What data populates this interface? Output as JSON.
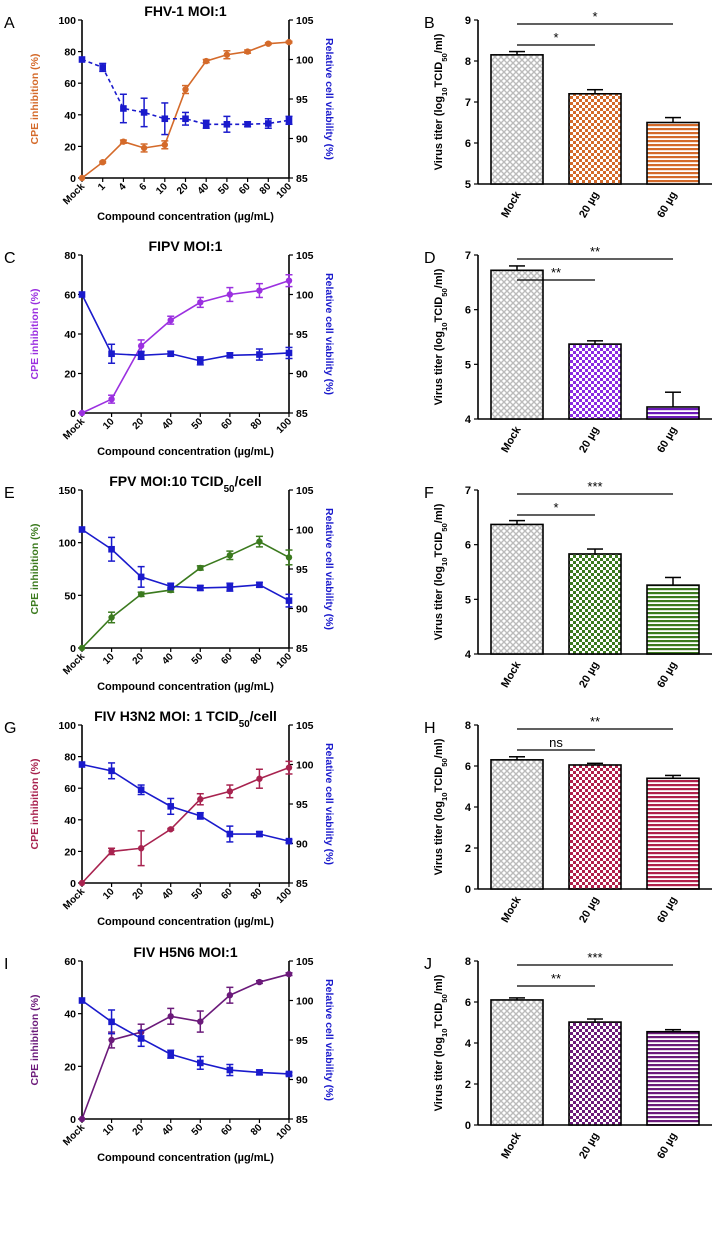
{
  "figure": {
    "ylabel_line_left": "CPE inhibition (%)",
    "ylabel_line_right": "Relative cell viability (%)",
    "xlabel_line": "Compound concentration (µg/mL)",
    "ylabel_bar_prefix": "Virus titer (log",
    "ylabel_bar_sub": "10",
    "ylabel_bar_mid": "TCID",
    "ylabel_bar_sub2": "50",
    "ylabel_bar_suffix": "/ml)"
  },
  "chart_data": [
    {
      "type": "line",
      "panel": "A",
      "title": [
        {
          "t": "FHV-1 MOI:1"
        }
      ],
      "color": "#D46A2A",
      "categories": [
        "Mock",
        "1",
        "4",
        "6",
        "10",
        "20",
        "40",
        "50",
        "60",
        "80",
        "100"
      ],
      "ylim_left": [
        0,
        100
      ],
      "yticks_left": [
        0,
        20,
        40,
        60,
        80,
        100
      ],
      "ylim_right": [
        85,
        105
      ],
      "yticks_right": [
        85,
        90,
        95,
        100,
        105
      ],
      "series": [
        {
          "name": "CPE inhibition",
          "axis": "left",
          "values": [
            0,
            10,
            23,
            19,
            21,
            56,
            74,
            78,
            80,
            85,
            86
          ],
          "errors": [
            0,
            0.5,
            1,
            2.5,
            2.5,
            2.5,
            1,
            2.5,
            1,
            0.5,
            0.5
          ]
        },
        {
          "name": "Relative cell viability",
          "axis": "right",
          "values": [
            100,
            99,
            93.8,
            93.3,
            92.5,
            92.5,
            91.8,
            91.8,
            91.8,
            91.9,
            92.3
          ],
          "errors": [
            0,
            0.5,
            1.8,
            1.8,
            2,
            0.8,
            0.5,
            1,
            0.3,
            0.6,
            0.5
          ]
        }
      ]
    },
    {
      "type": "bar",
      "panel": "B",
      "categories": [
        "Mock",
        "20 µg",
        "60 µg"
      ],
      "values": [
        8.15,
        7.2,
        6.5
      ],
      "errors": [
        0.08,
        0.1,
        0.12
      ],
      "colors": [
        "#bbbbbb",
        "#D46A2A",
        "#D46A2A"
      ],
      "patterns": [
        "mesh",
        "check",
        "hlines"
      ],
      "ylim": [
        5,
        9
      ],
      "yticks": [
        5,
        6,
        7,
        8,
        9
      ],
      "significance": [
        {
          "to": 1,
          "label": "*"
        },
        {
          "to": 2,
          "label": "*"
        }
      ]
    },
    {
      "type": "line",
      "panel": "C",
      "title": [
        {
          "t": "FIPV MOI:1"
        }
      ],
      "color": "#9B30E0",
      "categories": [
        "Mock",
        "10",
        "20",
        "40",
        "50",
        "60",
        "80",
        "100"
      ],
      "ylim_left": [
        0,
        80
      ],
      "yticks_left": [
        0,
        20,
        40,
        60,
        80
      ],
      "ylim_right": [
        85,
        105
      ],
      "yticks_right": [
        85,
        90,
        95,
        100,
        105
      ],
      "series": [
        {
          "name": "CPE inhibition",
          "axis": "left",
          "values": [
            0,
            7,
            34,
            47,
            56,
            60,
            62,
            67
          ],
          "errors": [
            0,
            2,
            3,
            2,
            2.5,
            3.5,
            3.5,
            3
          ]
        },
        {
          "name": "Relative cell viability",
          "axis": "right",
          "values": [
            100,
            92.5,
            92.3,
            92.5,
            91.6,
            92.3,
            92.4,
            92.6
          ],
          "errors": [
            0,
            1.2,
            0.5,
            0.3,
            0.5,
            0.3,
            0.7,
            0.7
          ]
        }
      ]
    },
    {
      "type": "bar",
      "panel": "D",
      "categories": [
        "Mock",
        "20 µg",
        "60 µg"
      ],
      "values": [
        6.72,
        5.37,
        4.22
      ],
      "errors": [
        0.08,
        0.06,
        0.27
      ],
      "colors": [
        "#bbbbbb",
        "#8A2BE2",
        "#6A1AB8"
      ],
      "patterns": [
        "mesh",
        "check",
        "hlines"
      ],
      "ylim": [
        4,
        7
      ],
      "yticks": [
        4,
        5,
        6,
        7
      ],
      "significance": [
        {
          "to": 1,
          "label": "**"
        },
        {
          "to": 2,
          "label": "**"
        }
      ]
    },
    {
      "type": "line",
      "panel": "E",
      "title": [
        {
          "t": "FPV MOI:10 TCID"
        },
        {
          "t": "50",
          "sub": true
        },
        {
          "t": "/cell"
        }
      ],
      "color": "#3B7A1E",
      "categories": [
        "Mock",
        "10",
        "20",
        "40",
        "50",
        "60",
        "80",
        "100"
      ],
      "ylim_left": [
        0,
        150
      ],
      "yticks_left": [
        0,
        50,
        100,
        150
      ],
      "ylim_right": [
        85,
        105
      ],
      "yticks_right": [
        85,
        90,
        95,
        100,
        105
      ],
      "series": [
        {
          "name": "CPE inhibition",
          "axis": "left",
          "values": [
            0,
            29,
            51,
            55,
            76,
            88,
            101,
            86
          ],
          "errors": [
            0,
            5,
            2,
            2,
            2,
            4,
            5,
            7
          ]
        },
        {
          "name": "Relative cell viability",
          "axis": "right",
          "values": [
            100,
            97.5,
            94,
            92.8,
            92.6,
            92.7,
            93,
            91
          ],
          "errors": [
            0,
            1.5,
            1.3,
            0.4,
            0.3,
            0.5,
            0.3,
            0.8
          ]
        }
      ]
    },
    {
      "type": "bar",
      "panel": "F",
      "categories": [
        "Mock",
        "20 µg",
        "60 µg"
      ],
      "values": [
        6.37,
        5.83,
        5.26
      ],
      "errors": [
        0.07,
        0.09,
        0.14
      ],
      "colors": [
        "#bbbbbb",
        "#3B7A1E",
        "#3B7A1E"
      ],
      "patterns": [
        "mesh",
        "check",
        "hlines"
      ],
      "ylim": [
        4,
        7
      ],
      "yticks": [
        4,
        5,
        6,
        7
      ],
      "significance": [
        {
          "to": 1,
          "label": "*"
        },
        {
          "to": 2,
          "label": "***"
        }
      ]
    },
    {
      "type": "line",
      "panel": "G",
      "title": [
        {
          "t": "FIV H3N2 MOI: 1 TCID"
        },
        {
          "t": "50",
          "sub": true
        },
        {
          "t": "/cell"
        }
      ],
      "color": "#A8234F",
      "categories": [
        "Mock",
        "10",
        "20",
        "40",
        "50",
        "60",
        "80",
        "100"
      ],
      "ylim_left": [
        0,
        100
      ],
      "yticks_left": [
        0,
        20,
        40,
        60,
        80,
        100
      ],
      "ylim_right": [
        85,
        105
      ],
      "yticks_right": [
        85,
        90,
        95,
        100,
        105
      ],
      "series": [
        {
          "name": "CPE inhibition",
          "axis": "left",
          "values": [
            0,
            20,
            22,
            34,
            53,
            58,
            66,
            73
          ],
          "errors": [
            0,
            2,
            11,
            0.5,
            3.5,
            4,
            6,
            4
          ]
        },
        {
          "name": "Relative cell viability",
          "axis": "right",
          "values": [
            100,
            99.2,
            96.8,
            94.7,
            93.5,
            91.2,
            91.2,
            90.3
          ],
          "errors": [
            0,
            1,
            0.6,
            1,
            0.4,
            1,
            0.3,
            0.2
          ]
        }
      ]
    },
    {
      "type": "bar",
      "panel": "H",
      "categories": [
        "Mock",
        "20 µg",
        "60 µg"
      ],
      "values": [
        6.3,
        6.05,
        5.4
      ],
      "errors": [
        0.15,
        0.08,
        0.14
      ],
      "colors": [
        "#bbbbbb",
        "#B0204A",
        "#B0204A"
      ],
      "patterns": [
        "mesh",
        "check",
        "hlines"
      ],
      "ylim": [
        0,
        8
      ],
      "yticks": [
        0,
        2,
        4,
        6,
        8
      ],
      "significance": [
        {
          "to": 1,
          "label": "ns"
        },
        {
          "to": 2,
          "label": "**"
        }
      ]
    },
    {
      "type": "line",
      "panel": "I",
      "title": [
        {
          "t": "FIV H5N6 MOI:1"
        }
      ],
      "color": "#6B1A7A",
      "categories": [
        "Mock",
        "10",
        "20",
        "40",
        "50",
        "60",
        "80",
        "100"
      ],
      "ylim_left": [
        0,
        60
      ],
      "yticks_left": [
        0,
        20,
        40,
        60
      ],
      "ylim_right": [
        85,
        105
      ],
      "yticks_right": [
        85,
        90,
        95,
        100,
        105
      ],
      "series": [
        {
          "name": "CPE inhibition",
          "axis": "left",
          "values": [
            0,
            30,
            33,
            39,
            37,
            47,
            52,
            55
          ],
          "errors": [
            0,
            3,
            3,
            3,
            4,
            3,
            0.5,
            0.5
          ]
        },
        {
          "name": "Relative cell viability",
          "axis": "right",
          "values": [
            100,
            97.3,
            95.2,
            93.2,
            92.1,
            91.2,
            90.9,
            90.7
          ],
          "errors": [
            0,
            1.5,
            1,
            0.5,
            0.8,
            0.7,
            0.3,
            0.2
          ]
        }
      ]
    },
    {
      "type": "bar",
      "panel": "J",
      "categories": [
        "Mock",
        "20 µg",
        "60 µg"
      ],
      "values": [
        6.1,
        5.02,
        4.55
      ],
      "errors": [
        0.1,
        0.15,
        0.1
      ],
      "colors": [
        "#bbbbbb",
        "#6B1A7A",
        "#6B1A7A"
      ],
      "patterns": [
        "mesh",
        "check",
        "hlines"
      ],
      "ylim": [
        0,
        8
      ],
      "yticks": [
        0,
        2,
        4,
        6,
        8
      ],
      "significance": [
        {
          "to": 1,
          "label": "**"
        },
        {
          "to": 2,
          "label": "***"
        }
      ]
    }
  ]
}
